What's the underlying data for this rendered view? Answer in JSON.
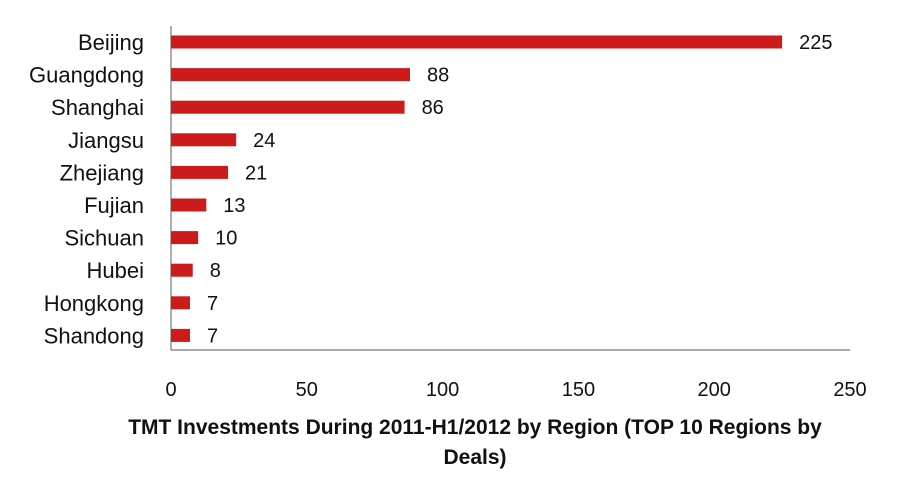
{
  "chart_data": {
    "type": "bar",
    "orientation": "horizontal",
    "categories": [
      "Beijing",
      "Guangdong",
      "Shanghai",
      "Jiangsu",
      "Zhejiang",
      "Fujian",
      "Sichuan",
      "Hubei",
      "Hongkong",
      "Shandong"
    ],
    "values": [
      225,
      88,
      86,
      24,
      21,
      13,
      10,
      8,
      7,
      7
    ],
    "xlabel": "TMT Investments During 2011-H1/2012 by Region (TOP 10 Regions by Deals)",
    "ylabel": "",
    "xlim": [
      0,
      250
    ],
    "xticks": [
      0,
      50,
      100,
      150,
      200,
      250
    ],
    "bar_color": "#cc1b1b",
    "grid": false,
    "legend": "none"
  }
}
